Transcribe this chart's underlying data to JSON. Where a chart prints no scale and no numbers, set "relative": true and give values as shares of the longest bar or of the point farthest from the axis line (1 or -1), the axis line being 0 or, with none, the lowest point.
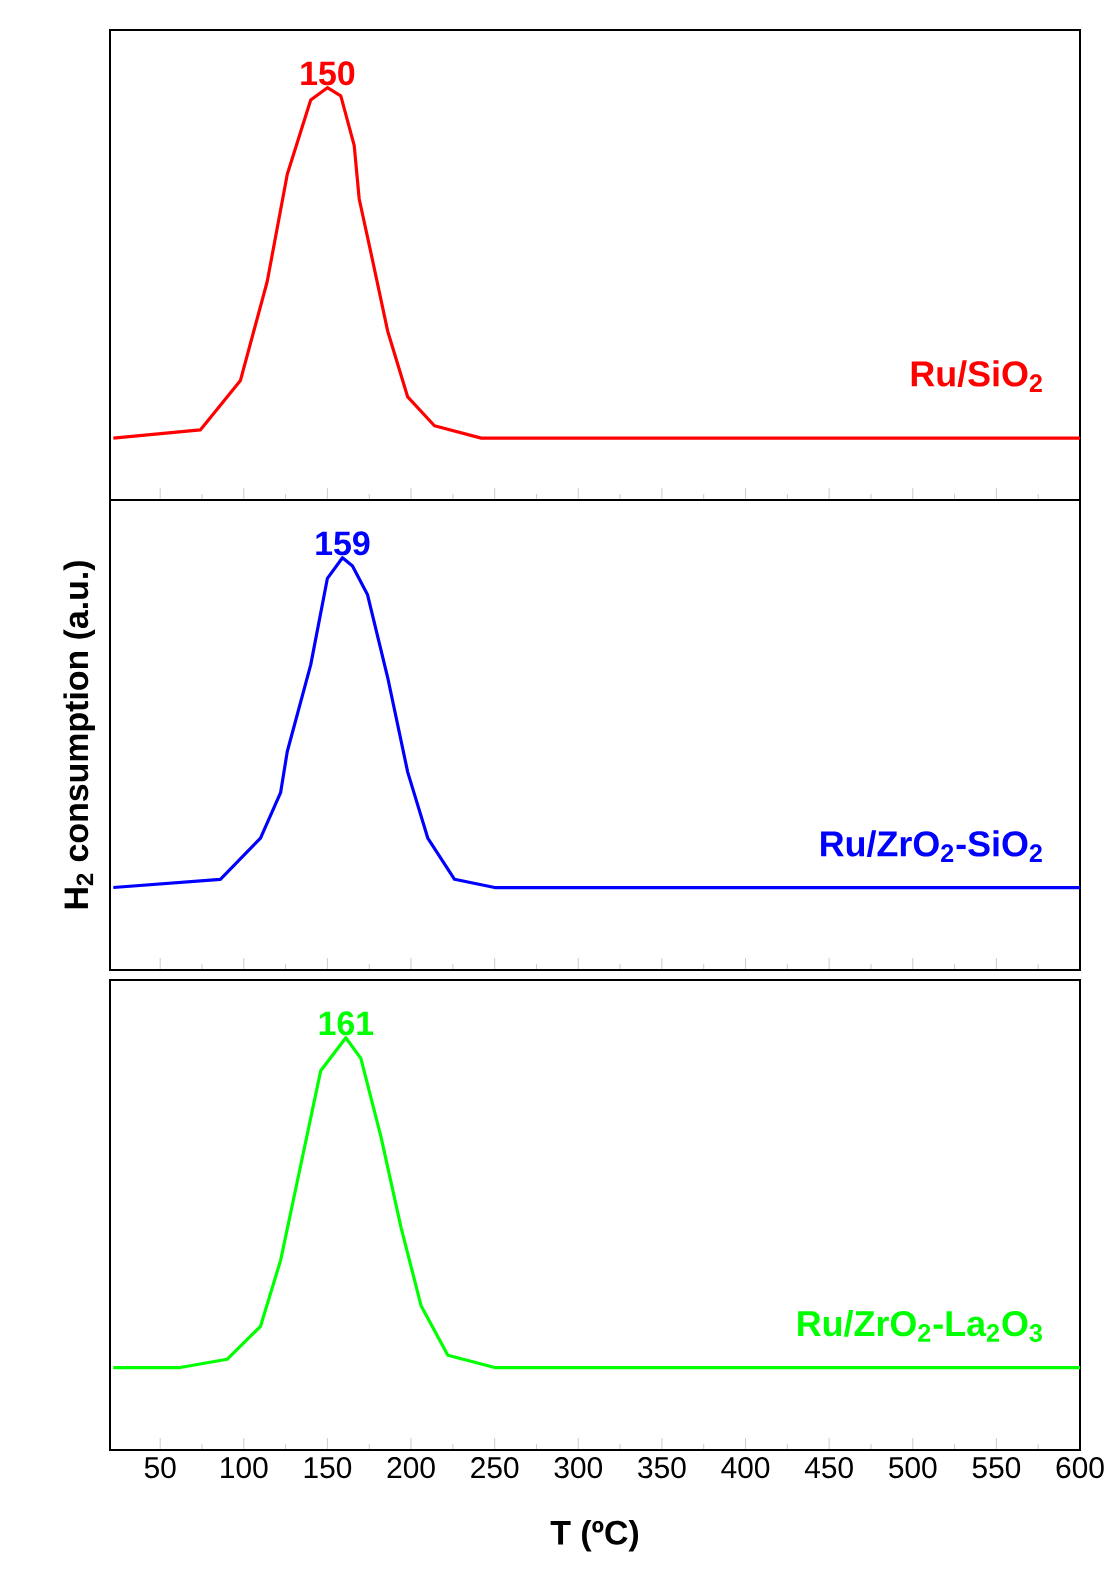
{
  "chart_data": [
    {
      "type": "line",
      "relative": true,
      "xlim": [
        20,
        600
      ],
      "xticks": [
        50,
        100,
        150,
        200,
        250,
        300,
        350,
        400,
        450,
        500,
        550,
        600
      ],
      "tick_labels": false,
      "series": [
        {
          "name": "Ru/SiO$_{2}$",
          "color": "#ff0000",
          "x": [
            22,
            74,
            98,
            114,
            126,
            140,
            150,
            158,
            166,
            169,
            176,
            186,
            198,
            214,
            242,
            600
          ],
          "values": [
            0.15,
            0.17,
            0.29,
            0.53,
            0.79,
            0.97,
            1,
            0.98,
            0.86,
            0.73,
            0.6,
            0.41,
            0.25,
            0.18,
            0.15,
            0.15
          ]
        }
      ],
      "annotations": [
        {
          "text": "150",
          "x": 150,
          "y": 1
        }
      ]
    },
    {
      "type": "line",
      "relative": true,
      "xlim": [
        20,
        600
      ],
      "xticks": [
        50,
        100,
        150,
        200,
        250,
        300,
        350,
        400,
        450,
        500,
        550,
        600
      ],
      "tick_labels": false,
      "ylabel": "H$_{2}$ consumption (a.u.)",
      "series": [
        {
          "name": "Ru/ZrO$_{2}$-SiO$_{2}$",
          "color": "#0000ff",
          "x": [
            22,
            86,
            110,
            122,
            126,
            140,
            150,
            159,
            165,
            174,
            186,
            198,
            210,
            226,
            250,
            600
          ],
          "values": [
            0.2,
            0.22,
            0.32,
            0.43,
            0.53,
            0.74,
            0.95,
            1,
            0.98,
            0.91,
            0.71,
            0.48,
            0.32,
            0.22,
            0.2,
            0.2
          ]
        }
      ],
      "annotations": [
        {
          "text": "159",
          "x": 159,
          "y": 1
        }
      ]
    },
    {
      "type": "line",
      "relative": true,
      "xlim": [
        20,
        600
      ],
      "xticks": [
        50,
        100,
        150,
        200,
        250,
        300,
        350,
        400,
        450,
        500,
        550,
        600
      ],
      "tick_labels": "x",
      "xlabel": "T (ºC)",
      "series": [
        {
          "name": "Ru/ZrO$_{2}$-La$_{2}$O$_{3}$",
          "color": "#00ff00",
          "x": [
            22,
            62,
            90,
            110,
            122,
            134,
            146,
            161,
            170,
            182,
            194,
            206,
            222,
            250,
            600
          ],
          "values": [
            0.2,
            0.2,
            0.22,
            0.3,
            0.46,
            0.69,
            0.92,
            1,
            0.95,
            0.76,
            0.54,
            0.35,
            0.23,
            0.2,
            0.2
          ]
        }
      ],
      "annotations": [
        {
          "text": "161",
          "x": 161,
          "y": 1
        }
      ]
    }
  ]
}
